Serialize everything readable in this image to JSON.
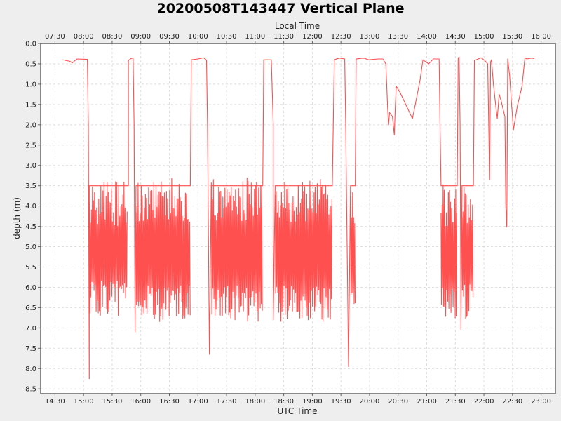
{
  "chart_data": {
    "type": "line",
    "title": "20200508T143447 Vertical Plane",
    "xlabel": "UTC Time",
    "x2label": "Local Time",
    "ylabel": "depth (m)",
    "y_inverted": true,
    "ylim": [
      0,
      8.6
    ],
    "xlim_utc": [
      "14:15",
      "23:15"
    ],
    "grid": true,
    "yticks": [
      "0.0",
      "0.5",
      "1.0",
      "1.5",
      "2.0",
      "2.5",
      "3.0",
      "3.5",
      "4.0",
      "4.5",
      "5.0",
      "5.5",
      "6.0",
      "6.5",
      "7.0",
      "7.5",
      "8.0",
      "8.5"
    ],
    "xticks_utc": [
      "14:30",
      "15:00",
      "15:30",
      "16:00",
      "16:30",
      "17:00",
      "17:30",
      "18:00",
      "18:30",
      "19:00",
      "19:30",
      "20:00",
      "20:30",
      "21:00",
      "21:30",
      "22:00",
      "22:30",
      "23:00"
    ],
    "xticks_local": [
      "07:30",
      "08:00",
      "08:30",
      "09:00",
      "09:30",
      "10:00",
      "10:30",
      "11:00",
      "11:30",
      "12:00",
      "12:30",
      "13:00",
      "13:30",
      "14:00",
      "14:30",
      "15:00",
      "15:30",
      "16:00"
    ],
    "line_color": "#ff5050",
    "series": [
      {
        "points": [
          [
            "14:38",
            0.4
          ],
          [
            "14:46",
            0.44
          ],
          [
            "14:48",
            0.48
          ],
          [
            "14:53",
            0.38
          ],
          [
            "15:04",
            0.39
          ],
          [
            "15:05",
            2.0
          ],
          [
            "15:06",
            8.25
          ],
          [
            "15:06",
            3.5
          ],
          [
            "15:47",
            3.5
          ],
          [
            "15:47",
            0.42
          ],
          [
            "15:49",
            0.38
          ],
          [
            "15:52",
            0.35
          ],
          [
            "15:53",
            2.0
          ],
          [
            "15:54",
            7.1
          ],
          [
            "15:55",
            3.5
          ],
          [
            "16:52",
            3.5
          ],
          [
            "16:53",
            0.4
          ],
          [
            "17:00",
            0.38
          ],
          [
            "17:06",
            0.35
          ],
          [
            "17:09",
            0.41
          ],
          [
            "17:10",
            2.0
          ],
          [
            "17:12",
            7.65
          ],
          [
            "17:14",
            3.5
          ],
          [
            "18:08",
            3.5
          ],
          [
            "18:09",
            0.4
          ],
          [
            "18:17",
            0.4
          ],
          [
            "18:19",
            2.0
          ],
          [
            "18:19",
            6.8
          ],
          [
            "18:21",
            3.5
          ],
          [
            "19:21",
            3.5
          ],
          [
            "19:23",
            0.4
          ],
          [
            "19:28",
            0.36
          ],
          [
            "19:34",
            0.38
          ],
          [
            "19:35",
            2.0
          ],
          [
            "19:38",
            7.95
          ],
          [
            "19:40",
            3.5
          ],
          [
            "19:45",
            3.5
          ],
          [
            "19:46",
            0.38
          ],
          [
            "19:54",
            0.36
          ],
          [
            "19:59",
            0.4
          ],
          [
            "20:09",
            0.38
          ],
          [
            "20:14",
            0.38
          ],
          [
            "20:17",
            0.5
          ],
          [
            "20:18",
            1.0
          ],
          [
            "20:19",
            1.6
          ],
          [
            "20:20",
            2.0
          ],
          [
            "20:21",
            1.7
          ],
          [
            "20:24",
            1.8
          ],
          [
            "20:26",
            2.25
          ],
          [
            "20:27",
            1.6
          ],
          [
            "20:28",
            1.05
          ],
          [
            "20:32",
            1.2
          ],
          [
            "20:37",
            1.45
          ],
          [
            "20:41",
            1.65
          ],
          [
            "20:45",
            1.85
          ],
          [
            "20:48",
            1.5
          ],
          [
            "20:53",
            0.9
          ],
          [
            "20:56",
            0.4
          ],
          [
            "20:59",
            0.45
          ],
          [
            "21:02",
            0.5
          ],
          [
            "21:07",
            0.38
          ],
          [
            "21:13",
            0.38
          ],
          [
            "21:14",
            2.0
          ],
          [
            "21:15",
            3.5
          ],
          [
            "21:32",
            3.5
          ],
          [
            "21:33",
            0.36
          ],
          [
            "21:34",
            0.33
          ],
          [
            "21:35",
            2.0
          ],
          [
            "21:36",
            7.05
          ],
          [
            "21:37",
            3.5
          ],
          [
            "21:49",
            3.5
          ],
          [
            "21:50",
            0.42
          ],
          [
            "21:54",
            0.38
          ],
          [
            "21:57",
            0.35
          ],
          [
            "22:01",
            0.42
          ],
          [
            "22:04",
            0.5
          ],
          [
            "22:05",
            2.0
          ],
          [
            "22:06",
            3.35
          ],
          [
            "22:07",
            0.45
          ],
          [
            "22:08",
            0.4
          ],
          [
            "22:10",
            1.0
          ],
          [
            "22:13",
            1.65
          ],
          [
            "22:14",
            1.85
          ],
          [
            "22:16",
            1.25
          ],
          [
            "22:18",
            1.4
          ],
          [
            "22:20",
            1.6
          ],
          [
            "22:22",
            1.8
          ],
          [
            "22:23",
            4.0
          ],
          [
            "22:24",
            4.52
          ],
          [
            "22:25",
            0.38
          ],
          [
            "22:27",
            0.8
          ],
          [
            "22:29",
            1.5
          ],
          [
            "22:31",
            2.12
          ],
          [
            "22:35",
            1.55
          ],
          [
            "22:40",
            1.05
          ],
          [
            "22:43",
            0.35
          ],
          [
            "22:45",
            0.38
          ],
          [
            "22:50",
            0.36
          ],
          [
            "22:53",
            0.37
          ]
        ],
        "oscillations": [
          {
            "start": "15:06",
            "end": "15:46",
            "shallow": 3.4,
            "deep": 6.7
          },
          {
            "start": "15:55",
            "end": "16:52",
            "shallow": 3.3,
            "deep": 6.85
          },
          {
            "start": "17:14",
            "end": "18:08",
            "shallow": 3.3,
            "deep": 6.85
          },
          {
            "start": "18:21",
            "end": "19:21",
            "shallow": 3.3,
            "deep": 6.85
          },
          {
            "start": "19:40",
            "end": "19:45",
            "shallow": 3.5,
            "deep": 6.6
          },
          {
            "start": "21:15",
            "end": "21:32",
            "shallow": 3.4,
            "deep": 6.8
          },
          {
            "start": "21:37",
            "end": "21:49",
            "shallow": 3.4,
            "deep": 6.8
          }
        ]
      }
    ]
  }
}
